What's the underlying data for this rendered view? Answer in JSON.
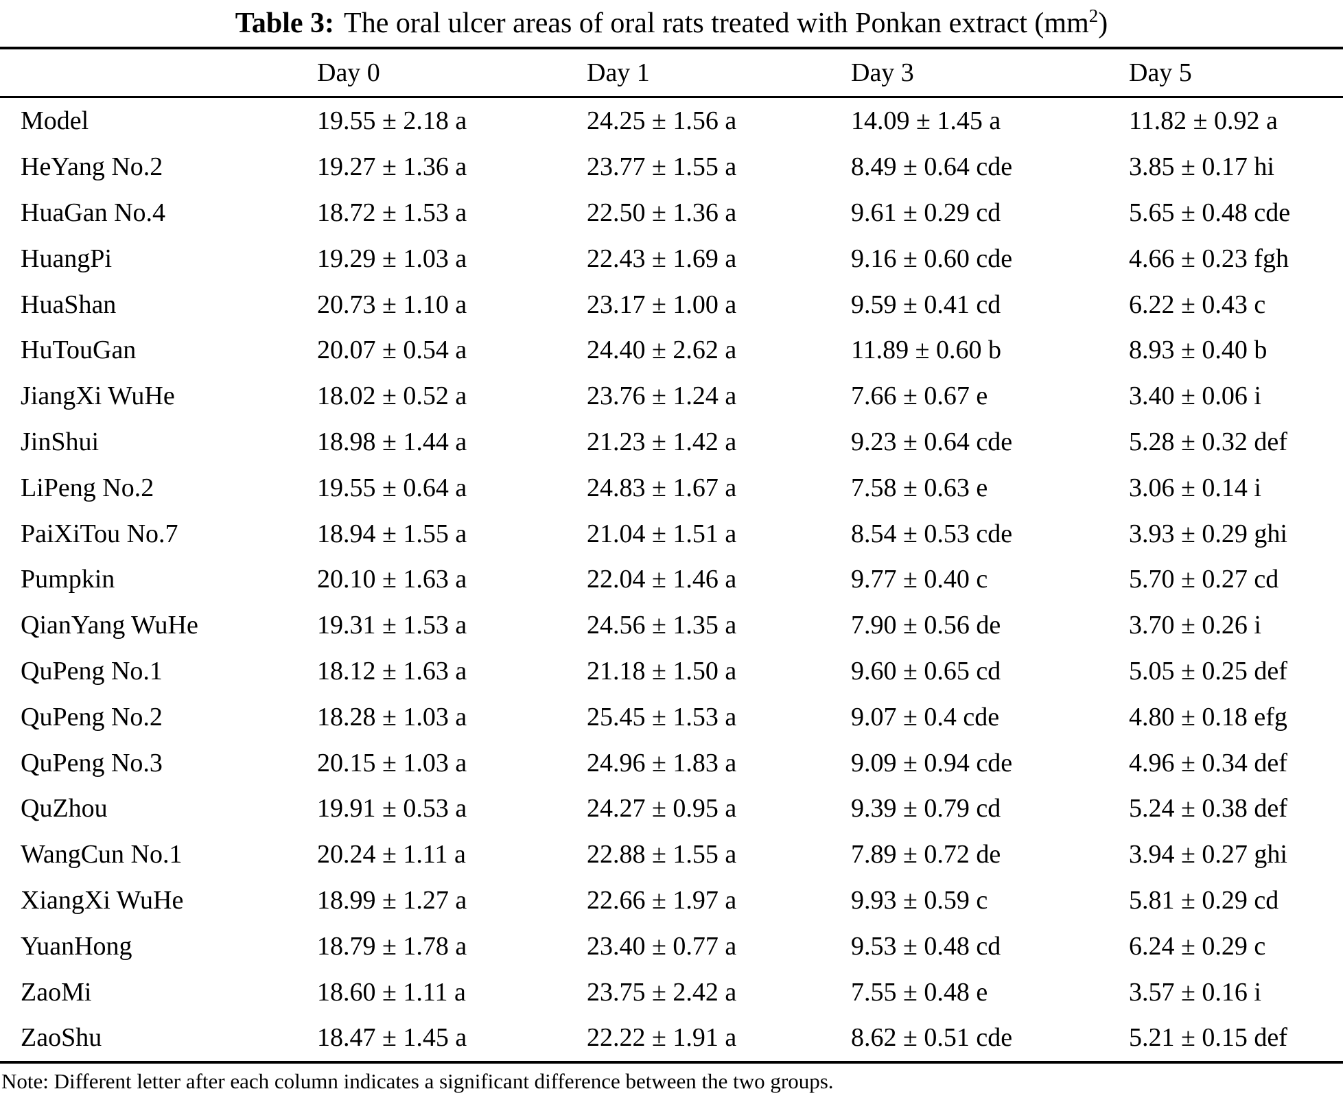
{
  "title": {
    "label": "Table 3:",
    "text": "The oral ulcer areas of oral rats treated with Ponkan extract (mm",
    "superscript": "2",
    "suffix": ")"
  },
  "table": {
    "header": [
      "",
      "Day 0",
      "Day 1",
      "Day 3",
      "Day 5"
    ],
    "rows": [
      [
        "Model",
        "19.55 ± 2.18 a",
        "24.25 ± 1.56 a",
        "14.09 ± 1.45 a",
        "11.82 ± 0.92 a"
      ],
      [
        "HeYang No.2",
        "19.27 ± 1.36 a",
        "23.77 ± 1.55 a",
        "8.49 ± 0.64 cde",
        "3.85 ± 0.17 hi"
      ],
      [
        "HuaGan No.4",
        "18.72 ± 1.53 a",
        "22.50 ± 1.36 a",
        "9.61 ± 0.29 cd",
        "5.65 ± 0.48 cde"
      ],
      [
        "HuangPi",
        "19.29 ± 1.03 a",
        "22.43 ± 1.69 a",
        "9.16 ± 0.60 cde",
        "4.66 ± 0.23 fgh"
      ],
      [
        "HuaShan",
        "20.73 ± 1.10 a",
        "23.17 ± 1.00 a",
        "9.59 ± 0.41 cd",
        "6.22 ± 0.43 c"
      ],
      [
        "HuTouGan",
        "20.07 ± 0.54 a",
        "24.40 ± 2.62 a",
        "11.89 ± 0.60 b",
        "8.93 ± 0.40 b"
      ],
      [
        "JiangXi WuHe",
        "18.02 ± 0.52 a",
        "23.76 ± 1.24 a",
        "7.66 ± 0.67 e",
        "3.40 ± 0.06 i"
      ],
      [
        "JinShui",
        "18.98 ± 1.44 a",
        "21.23 ± 1.42 a",
        "9.23 ± 0.64 cde",
        "5.28 ± 0.32 def"
      ],
      [
        "LiPeng No.2",
        "19.55 ± 0.64 a",
        "24.83 ± 1.67 a",
        "7.58 ± 0.63 e",
        "3.06 ± 0.14 i"
      ],
      [
        "PaiXiTou No.7",
        "18.94 ± 1.55 a",
        "21.04 ± 1.51 a",
        "8.54 ± 0.53 cde",
        "3.93 ± 0.29 ghi"
      ],
      [
        "Pumpkin",
        "20.10 ± 1.63 a",
        "22.04 ± 1.46 a",
        "9.77 ± 0.40 c",
        "5.70 ± 0.27 cd"
      ],
      [
        "QianYang WuHe",
        "19.31 ± 1.53 a",
        "24.56 ± 1.35 a",
        "7.90 ± 0.56 de",
        "3.70 ± 0.26 i"
      ],
      [
        "QuPeng No.1",
        "18.12 ± 1.63 a",
        "21.18 ± 1.50 a",
        "9.60 ± 0.65 cd",
        "5.05 ± 0.25 def"
      ],
      [
        "QuPeng No.2",
        "18.28 ± 1.03 a",
        "25.45 ± 1.53 a",
        "9.07 ± 0.4 cde",
        "4.80 ± 0.18 efg"
      ],
      [
        "QuPeng No.3",
        "20.15 ± 1.03 a",
        "24.96 ± 1.83 a",
        "9.09 ± 0.94 cde",
        "4.96 ± 0.34 def"
      ],
      [
        "QuZhou",
        "19.91 ± 0.53 a",
        "24.27 ± 0.95 a",
        "9.39 ± 0.79 cd",
        "5.24 ± 0.38 def"
      ],
      [
        "WangCun No.1",
        "20.24 ± 1.11 a",
        "22.88 ± 1.55 a",
        "7.89 ± 0.72 de",
        "3.94 ± 0.27 ghi"
      ],
      [
        "XiangXi WuHe",
        "18.99 ± 1.27 a",
        "22.66 ± 1.97 a",
        "9.93 ± 0.59 c",
        "5.81 ± 0.29 cd"
      ],
      [
        "YuanHong",
        "18.79 ± 1.78 a",
        "23.40 ± 0.77 a",
        "9.53 ± 0.48 cd",
        "6.24 ± 0.29 c"
      ],
      [
        "ZaoMi",
        "18.60 ± 1.11 a",
        "23.75 ± 2.42 a",
        "7.55 ± 0.48 e",
        "3.57 ± 0.16 i"
      ],
      [
        "ZaoShu",
        "18.47 ± 1.45 a",
        "22.22 ± 1.91 a",
        "8.62 ± 0.51 cde",
        "5.21 ± 0.15 def"
      ]
    ]
  },
  "note": "Note: Different letter after each column indicates a significant difference between the two groups.",
  "colors": {
    "text": "#000000",
    "background": "#ffffff",
    "rule": "#000000"
  }
}
